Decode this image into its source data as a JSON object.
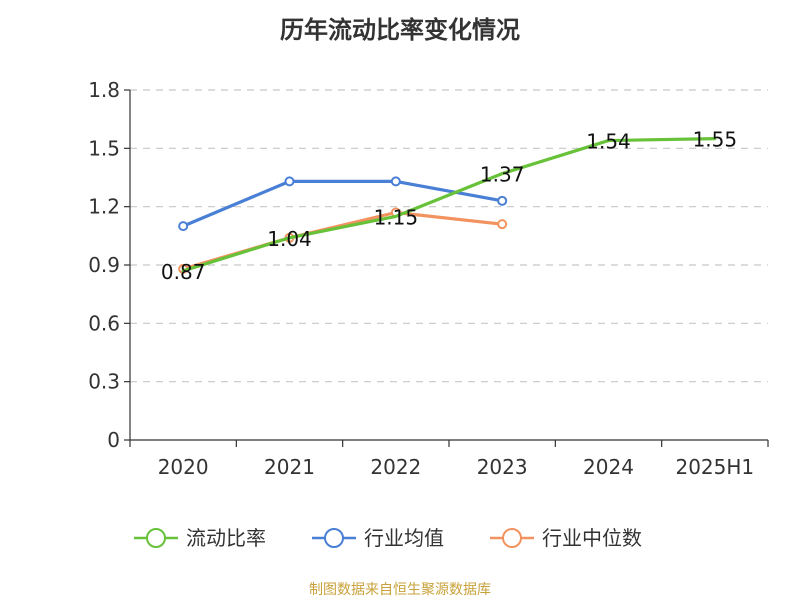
{
  "chart_data": {
    "type": "line",
    "title": "历年流动比率变化情况",
    "categories": [
      "2020",
      "2021",
      "2022",
      "2023",
      "2024",
      "2025H1"
    ],
    "ylim": [
      0,
      1.8
    ],
    "yticks": [
      "0",
      "0.3",
      "0.6",
      "0.9",
      "1.2",
      "1.5",
      "1.8"
    ],
    "grid": true,
    "legend_position": "bottom",
    "series": [
      {
        "name": "流动比率",
        "color": "#67c23a",
        "values": [
          0.87,
          1.04,
          1.15,
          1.37,
          1.54,
          1.55
        ],
        "data_labels": [
          "0.87",
          "1.04",
          "1.15",
          "1.37",
          "1.54",
          "1.55"
        ]
      },
      {
        "name": "行业均值",
        "color": "#4a7fd6",
        "values": [
          1.1,
          1.33,
          1.33,
          1.23,
          null,
          null
        ]
      },
      {
        "name": "行业中位数",
        "color": "#f2935f",
        "values": [
          0.88,
          1.04,
          1.17,
          1.11,
          null,
          null
        ]
      }
    ]
  },
  "source_text": "制图数据来自恒生聚源数据库"
}
